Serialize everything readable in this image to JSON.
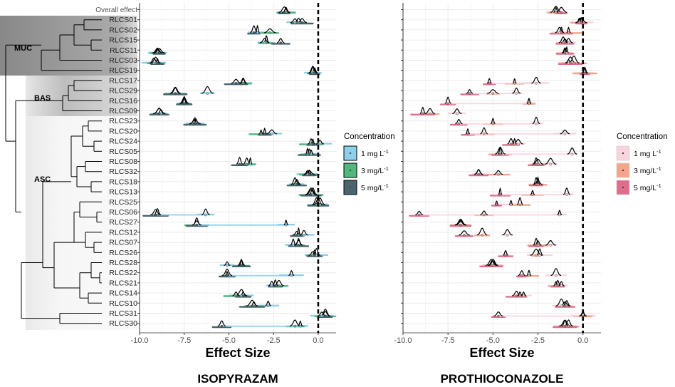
{
  "figure": {
    "legend_title": "Concentration",
    "legends": {
      "left": {
        "title": "Concentration",
        "items": [
          {
            "label": "1 mg L",
            "sup": "-1",
            "color": "#8ecfea"
          },
          {
            "label": "3 mg/L",
            "sup": "-1",
            "color": "#52b77d"
          },
          {
            "label": "5 mg/L",
            "sup": "-1",
            "color": "#4b636f"
          }
        ]
      },
      "right": {
        "title": "Concentration",
        "items": [
          {
            "label": "1 mg L",
            "sup": "-1",
            "color": "#f9d4dc"
          },
          {
            "label": "3 mg/L",
            "sup": "-1",
            "color": "#f3a68b"
          },
          {
            "label": "5 mg/L",
            "sup": "-1",
            "color": "#de6f8c"
          }
        ]
      }
    },
    "clades": [
      {
        "label": "MUC"
      },
      {
        "label": "BAS"
      },
      {
        "label": "ASC"
      }
    ],
    "overall_label": "Overall effect",
    "row_labels": [
      "RLCS01",
      "RLCS02",
      "RLCS15",
      "RLCS11",
      "RLCS03",
      "RLCS19",
      "RLCS17",
      "RLCS29",
      "RLCS16",
      "RLCS09",
      "RLCS23",
      "RLCS20",
      "RLCS24",
      "RLCS05",
      "RLCS08",
      "RLCS32",
      "RLCS18",
      "RLCS13",
      "RLCS25",
      "RLCS06",
      "RLCS27",
      "RLCS12",
      "RLCS07",
      "RLCS26",
      "RLCS28",
      "RLCS22",
      "RLCS21",
      "RLCS14",
      "RLCS10",
      "RLCS31",
      "RLCS30"
    ]
  },
  "chart_data": [
    {
      "type": "scatter",
      "title": "ISOPYRAZAM",
      "xlabel": "Effect Size",
      "ylabel": "",
      "xlim": [
        -10,
        1
      ],
      "xticks": [
        -10.0,
        -7.5,
        -5.0,
        -2.5,
        0.0
      ],
      "xtick_labels": [
        "-10.0",
        "-7.5",
        "-5.0",
        "-2.5",
        "0.0"
      ],
      "reference_line": 0,
      "categories": [
        "Overall effect",
        "RLCS01",
        "RLCS02",
        "RLCS15",
        "RLCS11",
        "RLCS03",
        "RLCS19",
        "RLCS17",
        "RLCS29",
        "RLCS16",
        "RLCS09",
        "RLCS23",
        "RLCS20",
        "RLCS24",
        "RLCS05",
        "RLCS08",
        "RLCS32",
        "RLCS18",
        "RLCS13",
        "RLCS25",
        "RLCS06",
        "RLCS27",
        "RLCS12",
        "RLCS07",
        "RLCS26",
        "RLCS28",
        "RLCS22",
        "RLCS21",
        "RLCS14",
        "RLCS10",
        "RLCS31",
        "RLCS30"
      ],
      "series": [
        {
          "name": "1 mg L-1",
          "values": [
            -1.8,
            -1.3,
            -3.4,
            -3.0,
            -9.0,
            -9.2,
            -0.3,
            -4.2,
            -6.2,
            -7.5,
            -8.8,
            -6.9,
            -2.6,
            0.1,
            -0.4,
            -3.8,
            -0.6,
            -1.2,
            -0.3,
            0.1,
            -6.3,
            -1.8,
            -0.8,
            -1.4,
            -0.1,
            -5.1,
            -1.5,
            -2.6,
            -4.3,
            -2.8,
            0.2,
            -1.0
          ]
        },
        {
          "name": "3 mg/L-1",
          "values": [
            -1.8,
            -1.1,
            -2.7,
            -2.9,
            -9.0,
            -9.1,
            -0.3,
            -4.2,
            -8.0,
            -7.5,
            -8.9,
            -6.9,
            -3.2,
            -0.4,
            -0.6,
            -4.0,
            -0.5,
            -1.3,
            -0.4,
            -0.1,
            -9.0,
            -6.8,
            -1.1,
            -1.1,
            -0.3,
            -4.3,
            -5.1,
            -2.2,
            -4.6,
            -3.6,
            0.4,
            -1.3
          ]
        },
        {
          "name": "5 mg/L-1",
          "values": [
            -1.9,
            -0.9,
            -3.6,
            -2.1,
            -8.9,
            -9.0,
            -0.2,
            -4.6,
            -8.0,
            -7.5,
            -8.9,
            -6.9,
            -3.0,
            -0.3,
            -0.5,
            -4.4,
            -0.5,
            -1.2,
            -0.4,
            0.0,
            -9.1,
            -6.8,
            -1.2,
            -1.1,
            -0.2,
            -4.3,
            -5.1,
            -2.4,
            -4.2,
            -3.7,
            0.4,
            -5.4
          ]
        }
      ]
    },
    {
      "type": "scatter",
      "title": "PROTHIOCONAZOLE",
      "xlabel": "Effect Size",
      "ylabel": "",
      "xlim": [
        -10,
        1
      ],
      "xticks": [
        -10.0,
        -7.5,
        -5.0,
        -2.5,
        0.0
      ],
      "xtick_labels": [
        "-10.0",
        "-7.5",
        "-5.0",
        "-2.5",
        "0.0"
      ],
      "reference_line": 0,
      "categories": [
        "Overall effect",
        "RLCS01",
        "RLCS02",
        "RLCS15",
        "RLCS11",
        "RLCS03",
        "RLCS19",
        "RLCS17",
        "RLCS29",
        "RLCS16",
        "RLCS09",
        "RLCS23",
        "RLCS20",
        "RLCS24",
        "RLCS05",
        "RLCS08",
        "RLCS32",
        "RLCS18",
        "RLCS13",
        "RLCS25",
        "RLCS06",
        "RLCS27",
        "RLCS12",
        "RLCS07",
        "RLCS26",
        "RLCS28",
        "RLCS22",
        "RLCS21",
        "RLCS14",
        "RLCS10",
        "RLCS31",
        "RLCS30"
      ],
      "series": [
        {
          "name": "1 mg L-1",
          "values": [
            -1.5,
            -0.1,
            -1.3,
            -0.8,
            -0.9,
            -0.8,
            0.1,
            -2.6,
            -3.7,
            -3.0,
            -7.0,
            -2.6,
            -1.0,
            -3.6,
            -0.6,
            -1.8,
            -5.8,
            -2.5,
            -0.9,
            -4.0,
            -1.3,
            -6.8,
            -4.2,
            -1.8,
            -2.4,
            -5.0,
            -1.5,
            -1.2,
            -3.3,
            -1.2,
            0.0,
            -1.0
          ]
        },
        {
          "name": "3 mg/L-1",
          "values": [
            -1.5,
            -0.2,
            -0.8,
            -1.1,
            -1.0,
            -0.5,
            0.1,
            -3.8,
            -5.0,
            -3.0,
            -8.5,
            -5.0,
            -5.5,
            -3.8,
            -4.6,
            -2.5,
            -4.7,
            -2.5,
            -2.8,
            -3.5,
            -5.5,
            -6.8,
            -5.6,
            -2.5,
            -2.6,
            -5.0,
            -3.0,
            -1.5,
            -3.5,
            -0.9,
            0.0,
            -0.8
          ]
        },
        {
          "name": "5 mg/L-1",
          "values": [
            -1.2,
            -0.1,
            -1.2,
            -1.0,
            -1.0,
            -0.7,
            0.1,
            -5.2,
            -6.3,
            -7.5,
            -8.9,
            -6.9,
            -6.4,
            -4.0,
            -4.6,
            -2.6,
            -5.8,
            -2.6,
            -4.6,
            -4.8,
            -9.1,
            -6.8,
            -6.6,
            -2.6,
            -4.3,
            -5.1,
            -3.4,
            -1.4,
            -3.7,
            -1.0,
            -4.7,
            -1.0
          ]
        }
      ]
    }
  ]
}
